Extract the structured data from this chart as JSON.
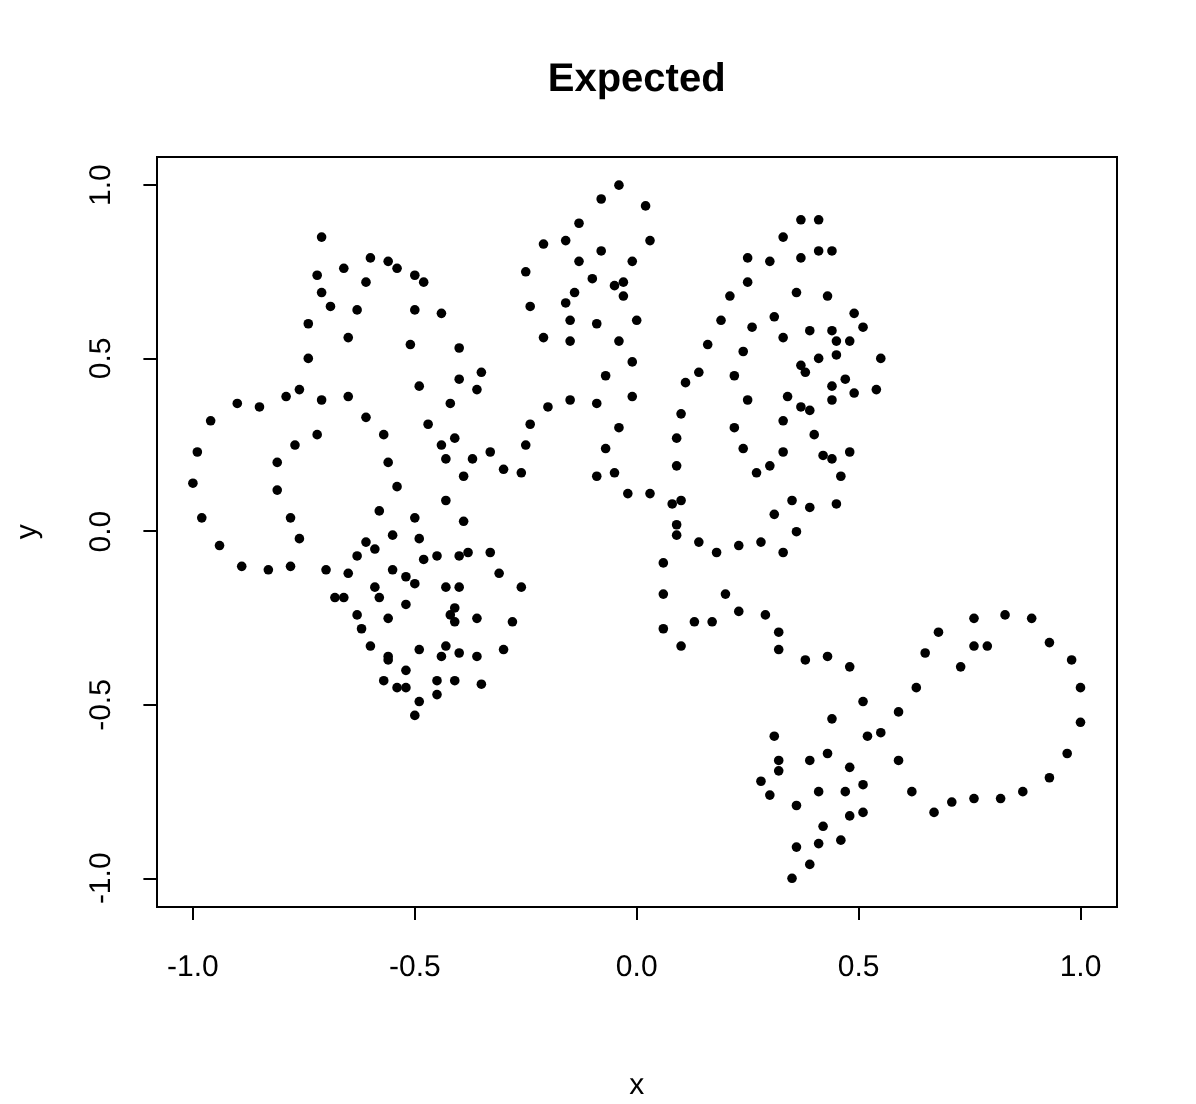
{
  "chart_data": {
    "type": "scatter",
    "title": "Expected",
    "xlabel": "x",
    "ylabel": "y",
    "color": "#000000",
    "marker": "circle",
    "xlim": [
      -1.08,
      1.08
    ],
    "ylim": [
      -1.08,
      1.08
    ],
    "xticks": [
      {
        "value": -1,
        "label": "-1.0"
      },
      -0.5,
      {
        "value": 0,
        "label": "0.0"
      },
      0.5,
      {
        "value": 1,
        "label": "1.0"
      }
    ],
    "yticks": [
      {
        "value": -1,
        "label": "-1.0"
      },
      -0.5,
      {
        "value": 0,
        "label": "0.0"
      },
      0.5,
      {
        "value": 1,
        "label": "1.0"
      }
    ],
    "x": [
      -0.71,
      -0.6,
      -0.56,
      -0.54,
      -0.66,
      -0.72,
      -0.61,
      -0.5,
      -0.48,
      -0.71,
      -0.69,
      -0.63,
      -0.5,
      -0.44,
      -0.74,
      -0.65,
      -0.51,
      -0.4,
      -0.74,
      -0.35,
      -0.4,
      -0.49,
      -0.36,
      -0.76,
      -0.79,
      -0.71,
      -0.65,
      -0.9,
      -0.85,
      -0.42,
      -0.61,
      -0.47,
      -0.96,
      -0.57,
      -0.72,
      -0.41,
      -0.77,
      -0.44,
      -0.99,
      -0.37,
      -0.81,
      -0.43,
      -0.56,
      -0.39,
      -1.0,
      -0.81,
      -0.54,
      -0.43,
      -0.98,
      -0.78,
      -0.58,
      -0.5,
      -0.39,
      -0.94,
      -0.76,
      -0.89,
      -0.83,
      -0.78,
      -0.7,
      -0.65,
      -0.63,
      -0.61,
      -0.59,
      -0.55,
      -0.49,
      -0.55,
      -0.48,
      -0.45,
      -0.4,
      -0.38,
      -0.52,
      -0.5,
      -0.59,
      -0.68,
      -0.66,
      -0.58,
      -0.43,
      -0.4,
      -0.52,
      -0.41,
      -0.63,
      -0.56,
      -0.42,
      -0.41,
      -0.36,
      -0.62,
      -0.6,
      -0.56,
      -0.56,
      -0.49,
      -0.43,
      -0.44,
      -0.4,
      -0.36,
      -0.52,
      -0.57,
      -0.54,
      -0.52,
      -0.45,
      -0.41,
      -0.35,
      -0.45,
      -0.49,
      -0.5,
      -0.33,
      -0.31,
      -0.26,
      -0.28,
      -0.3,
      -0.04,
      -0.08,
      0.02,
      -0.13,
      -0.21,
      -0.16,
      0.03,
      -0.08,
      -0.13,
      -0.01,
      -0.25,
      -0.1,
      -0.05,
      -0.03,
      -0.03,
      -0.14,
      -0.16,
      -0.24,
      -0.15,
      -0.09,
      0.0,
      -0.21,
      -0.15,
      -0.04,
      -0.01,
      -0.07,
      -0.15,
      -0.09,
      -0.01,
      -0.2,
      -0.24,
      -0.04,
      -0.33,
      -0.25,
      -0.07,
      -0.3,
      -0.26,
      -0.09,
      -0.05,
      -0.02,
      0.03,
      0.08,
      0.1,
      0.09,
      0.37,
      0.33,
      0.25,
      0.3,
      0.37,
      0.25,
      0.21,
      0.36,
      0.31,
      0.19,
      0.26,
      0.33,
      0.16,
      0.24,
      0.37,
      0.38,
      0.14,
      0.22,
      0.11,
      0.25,
      0.34,
      0.37,
      0.1,
      0.22,
      0.33,
      0.09,
      0.24,
      0.33,
      0.09,
      0.27,
      0.3,
      0.35,
      0.31,
      0.41,
      0.41,
      0.44,
      0.43,
      0.49,
      0.39,
      0.44,
      0.51,
      0.45,
      0.48,
      0.55,
      0.41,
      0.45,
      0.44,
      0.47,
      0.49,
      0.54,
      0.44,
      0.39,
      0.4,
      0.42,
      0.44,
      0.48,
      0.46,
      0.39,
      0.45,
      0.09,
      0.14,
      0.18,
      0.23,
      0.28,
      0.33,
      0.36,
      0.06,
      0.06,
      0.2,
      0.06,
      0.13,
      0.17,
      0.23,
      0.29,
      0.1,
      0.32,
      0.32,
      0.38,
      0.31,
      0.32,
      0.32,
      0.28,
      0.3,
      0.36,
      0.36,
      0.35,
      0.43,
      0.48,
      0.51,
      0.44,
      0.52,
      0.55,
      0.59,
      0.63,
      0.65,
      0.68,
      0.73,
      0.76,
      0.79,
      0.76,
      0.83,
      0.89,
      0.93,
      0.98,
      1.0,
      1.0,
      0.97,
      0.93,
      0.87,
      0.82,
      0.76,
      0.71,
      0.67,
      0.62,
      0.59,
      0.39,
      0.43,
      0.48,
      0.41,
      0.47,
      0.51,
      0.48,
      0.51,
      0.42,
      0.41,
      0.46,
      0.39
    ],
    "values": [
      0.85,
      0.79,
      0.78,
      0.76,
      0.76,
      0.74,
      0.72,
      0.74,
      0.72,
      0.69,
      0.65,
      0.64,
      0.64,
      0.63,
      0.6,
      0.56,
      0.54,
      0.53,
      0.5,
      0.46,
      0.44,
      0.42,
      0.41,
      0.41,
      0.39,
      0.38,
      0.39,
      0.37,
      0.36,
      0.37,
      0.33,
      0.31,
      0.32,
      0.28,
      0.28,
      0.27,
      0.25,
      0.25,
      0.23,
      0.21,
      0.2,
      0.21,
      0.2,
      0.16,
      0.14,
      0.12,
      0.13,
      0.09,
      0.04,
      0.04,
      0.06,
      0.04,
      0.03,
      -0.04,
      -0.02,
      -0.1,
      -0.11,
      -0.1,
      -0.11,
      -0.12,
      -0.07,
      -0.03,
      -0.05,
      -0.01,
      -0.02,
      -0.11,
      -0.08,
      -0.07,
      -0.07,
      -0.06,
      -0.13,
      -0.15,
      -0.16,
      -0.19,
      -0.19,
      -0.19,
      -0.16,
      -0.16,
      -0.21,
      -0.22,
      -0.24,
      -0.25,
      -0.24,
      -0.26,
      -0.25,
      -0.28,
      -0.33,
      -0.36,
      -0.37,
      -0.34,
      -0.33,
      -0.36,
      -0.35,
      -0.36,
      -0.4,
      -0.43,
      -0.45,
      -0.45,
      -0.43,
      -0.43,
      -0.44,
      -0.47,
      -0.49,
      -0.53,
      -0.06,
      -0.12,
      -0.16,
      -0.26,
      -0.34,
      1.0,
      0.96,
      0.94,
      0.89,
      0.83,
      0.84,
      0.84,
      0.81,
      0.78,
      0.78,
      0.75,
      0.73,
      0.71,
      0.72,
      0.68,
      0.69,
      0.66,
      0.65,
      0.61,
      0.6,
      0.61,
      0.56,
      0.55,
      0.55,
      0.49,
      0.45,
      0.38,
      0.37,
      0.39,
      0.36,
      0.31,
      0.3,
      0.23,
      0.25,
      0.24,
      0.18,
      0.17,
      0.16,
      0.17,
      0.11,
      0.11,
      0.08,
      0.09,
      0.02,
      0.9,
      0.85,
      0.79,
      0.78,
      0.79,
      0.72,
      0.68,
      0.69,
      0.62,
      0.61,
      0.59,
      0.56,
      0.54,
      0.52,
      0.48,
      0.46,
      0.46,
      0.45,
      0.43,
      0.38,
      0.39,
      0.36,
      0.34,
      0.3,
      0.32,
      0.27,
      0.24,
      0.23,
      0.19,
      0.17,
      0.19,
      0.09,
      0.05,
      0.9,
      0.81,
      0.81,
      0.68,
      0.63,
      0.58,
      0.58,
      0.59,
      0.55,
      0.55,
      0.5,
      0.5,
      0.51,
      0.42,
      0.44,
      0.4,
      0.41,
      0.38,
      0.35,
      0.28,
      0.22,
      0.21,
      0.23,
      0.16,
      0.07,
      0.08,
      -0.01,
      -0.03,
      -0.06,
      -0.04,
      -0.03,
      -0.06,
      0.0,
      -0.09,
      -0.18,
      -0.18,
      -0.28,
      -0.26,
      -0.26,
      -0.23,
      -0.24,
      -0.33,
      -0.29,
      -0.34,
      -0.37,
      -0.59,
      -0.66,
      -0.69,
      -0.72,
      -0.76,
      -0.79,
      -0.91,
      -1.0,
      -0.36,
      -0.39,
      -0.49,
      -0.54,
      -0.59,
      -0.58,
      -0.52,
      -0.45,
      -0.35,
      -0.29,
      -0.39,
      -0.33,
      -0.33,
      -0.25,
      -0.24,
      -0.25,
      -0.32,
      -0.37,
      -0.45,
      -0.55,
      -0.64,
      -0.71,
      -0.75,
      -0.77,
      -0.77,
      -0.78,
      -0.81,
      -0.75,
      -0.66,
      -0.66,
      -0.64,
      -0.68,
      -0.75,
      -0.75,
      -0.73,
      -0.82,
      -0.81,
      -0.85,
      -0.9,
      -0.89,
      -0.96
    ]
  }
}
